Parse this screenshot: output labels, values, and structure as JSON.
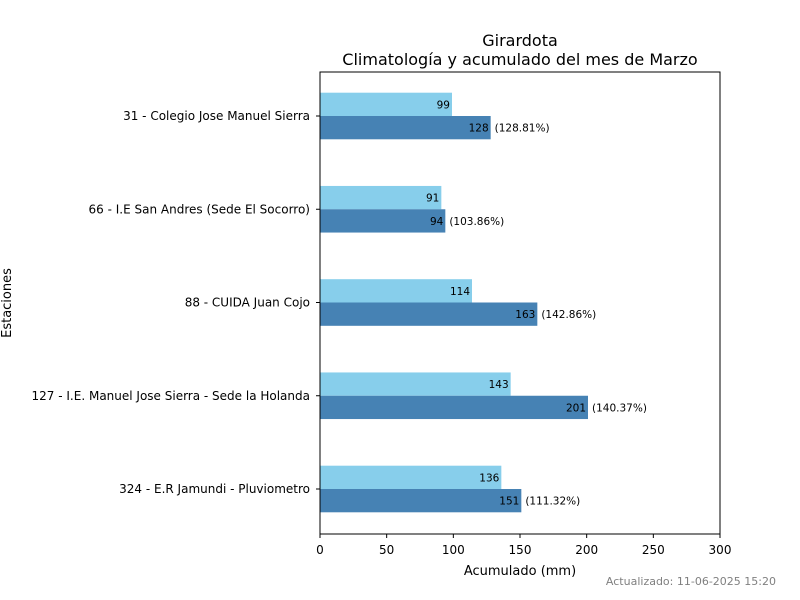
{
  "chart_data": {
    "type": "bar",
    "orientation": "horizontal",
    "title": "Girardota",
    "subtitle": "Climatología y acumulado del mes de Marzo",
    "xlabel": "Acumulado (mm)",
    "ylabel": "Estaciones",
    "xlim": [
      0,
      300
    ],
    "xticks": [
      0,
      50,
      100,
      150,
      200,
      250,
      300
    ],
    "grid": false,
    "categories": [
      "31 - Colegio Jose Manuel Sierra",
      "66 - I.E San Andres (Sede El Socorro)",
      "88 - CUIDA Juan Cojo",
      "127 - I.E. Manuel Jose Sierra - Sede la Holanda",
      "324 - E.R Jamundi - Pluviometro"
    ],
    "series": [
      {
        "values": [
          99,
          91,
          114,
          143,
          136
        ],
        "color": "#87ceeb"
      },
      {
        "values": [
          128,
          94,
          163,
          201,
          151
        ],
        "color": "#4682b4",
        "percent_labels": [
          "(128.81%)",
          "(103.86%)",
          "(142.86%)",
          "(140.37%)",
          "(111.32%)"
        ]
      }
    ]
  },
  "footer": {
    "updated": "Actualizado: 11-06-2025 15:20"
  }
}
